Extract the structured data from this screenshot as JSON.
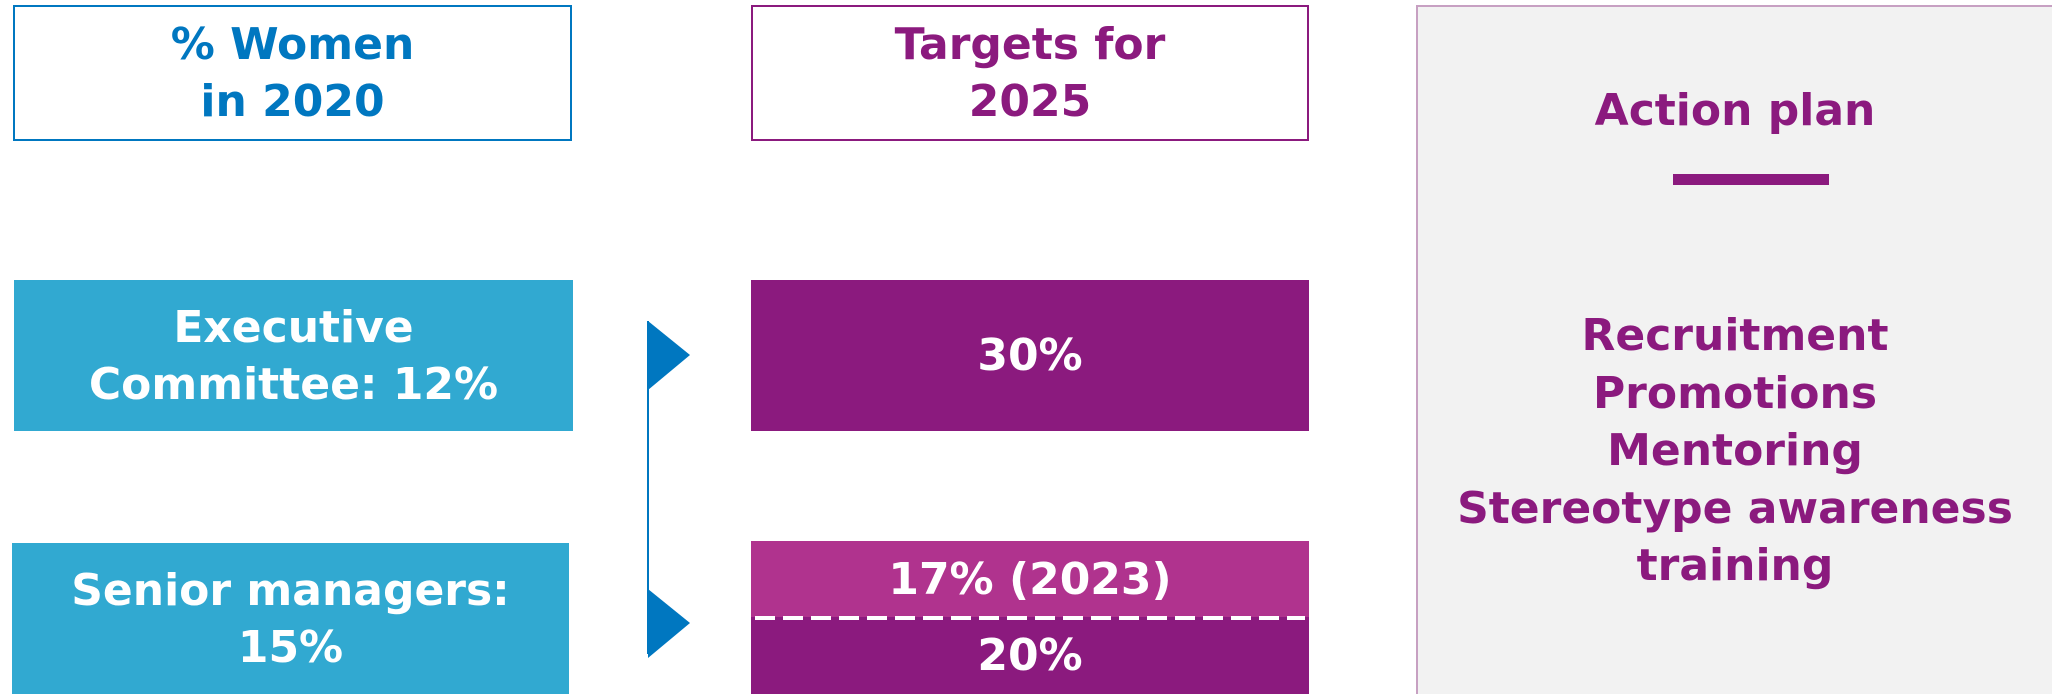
{
  "header_left": {
    "lines": [
      "% Women",
      "in 2020"
    ]
  },
  "header_middle": {
    "lines": [
      "Targets for",
      "2025"
    ]
  },
  "rows": [
    {
      "current": {
        "lines": [
          "Executive",
          "Committee: 12%"
        ]
      },
      "target": {
        "lines": [
          "30%"
        ]
      }
    },
    {
      "current": {
        "lines": [
          "Senior managers:",
          "15%"
        ]
      },
      "interim_target": {
        "lines": [
          "17% (2023)"
        ]
      },
      "target": {
        "lines": [
          "20%"
        ]
      }
    }
  ],
  "action_plan": {
    "title": "Action plan",
    "items": [
      "Recruitment",
      "Promotions",
      "Mentoring",
      "Stereotype awareness",
      "training"
    ]
  }
}
